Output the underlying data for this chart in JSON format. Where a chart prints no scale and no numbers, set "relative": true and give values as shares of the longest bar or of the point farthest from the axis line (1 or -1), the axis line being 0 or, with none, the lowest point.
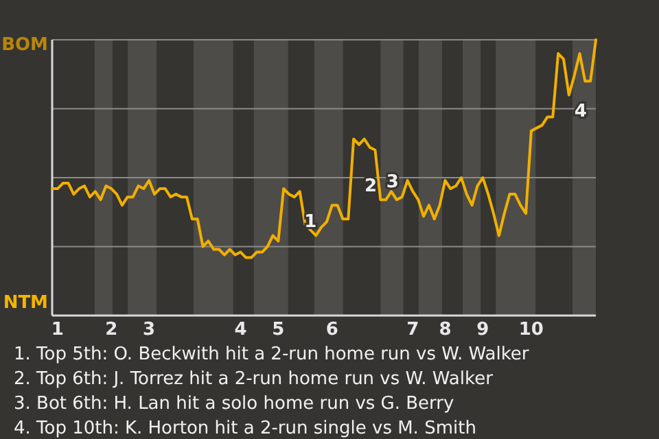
{
  "chart_data": {
    "type": "line",
    "relative": true,
    "categories": [
      null,
      "1",
      null,
      null,
      null,
      null,
      null,
      null,
      null,
      null,
      null,
      "2",
      null,
      null,
      null,
      null,
      null,
      null,
      "3",
      null,
      null,
      null,
      null,
      null,
      null,
      null,
      null,
      null,
      null,
      null,
      null,
      null,
      null,
      null,
      null,
      "4",
      null,
      null,
      null,
      null,
      null,
      null,
      "5",
      null,
      null,
      null,
      null,
      null,
      null,
      null,
      null,
      null,
      "6",
      null,
      null,
      null,
      null,
      null,
      null,
      null,
      null,
      null,
      null,
      null,
      null,
      null,
      null,
      "7",
      null,
      null,
      null,
      null,
      null,
      "8",
      null,
      null,
      null,
      null,
      null,
      null,
      "9",
      null,
      null,
      null,
      null,
      null,
      null,
      null,
      null,
      "10",
      null,
      null,
      null,
      null,
      null,
      null,
      null,
      null,
      null,
      null,
      null,
      null
    ],
    "marker": "none",
    "line_style": "solid",
    "series": [
      {
        "color": "#f0b000",
        "values": [
          0.46,
          0.46,
          0.48,
          0.48,
          0.44,
          0.46,
          0.47,
          0.43,
          0.45,
          0.42,
          0.47,
          0.46,
          0.44,
          0.4,
          0.43,
          0.43,
          0.47,
          0.46,
          0.49,
          0.44,
          0.46,
          0.46,
          0.43,
          0.44,
          0.43,
          0.43,
          0.35,
          0.35,
          0.25,
          0.27,
          0.24,
          0.24,
          0.22,
          0.24,
          0.22,
          0.23,
          0.21,
          0.21,
          0.23,
          0.23,
          0.25,
          0.29,
          0.27,
          0.46,
          0.44,
          0.43,
          0.45,
          0.33,
          0.31,
          0.29,
          0.32,
          0.34,
          0.4,
          0.4,
          0.35,
          0.35,
          0.64,
          0.62,
          0.64,
          0.61,
          0.6,
          0.42,
          0.42,
          0.45,
          0.42,
          0.43,
          0.49,
          0.45,
          0.42,
          0.36,
          0.4,
          0.35,
          0.4,
          0.49,
          0.46,
          0.47,
          0.5,
          0.44,
          0.4,
          0.47,
          0.5,
          0.44,
          0.37,
          0.29,
          0.37,
          0.44,
          0.44,
          0.4,
          0.37,
          0.67,
          0.68,
          0.69,
          0.72,
          0.72,
          0.95,
          0.93,
          0.8,
          0.87,
          0.95,
          0.85,
          0.85,
          1
        ]
      }
    ],
    "ref_lines": [
      {
        "axis": "y",
        "value": 0.25,
        "color": "#8c8a87"
      },
      {
        "axis": "y",
        "value": 0.5,
        "color": "#8c8a87"
      },
      {
        "axis": "y",
        "value": 0.75,
        "color": "#8c8a87"
      },
      {
        "axis": "y",
        "value": 1,
        "color": "#8c8a87"
      }
    ],
    "annotations": [
      "BOM",
      "NTM",
      "1",
      "2",
      "3",
      "4",
      "1. Top 5th: O. Beckwith hit a 2-run home run vs W. Walker",
      "2. Top 6th: J. Torrez hit a 2-run home run vs W. Walker",
      "3. Bot 6th: H. Lan hit a solo home run vs G. Berry",
      "4. Top 10th: K. Horton hit a 2-run single vs M. Smith"
    ]
  }
}
